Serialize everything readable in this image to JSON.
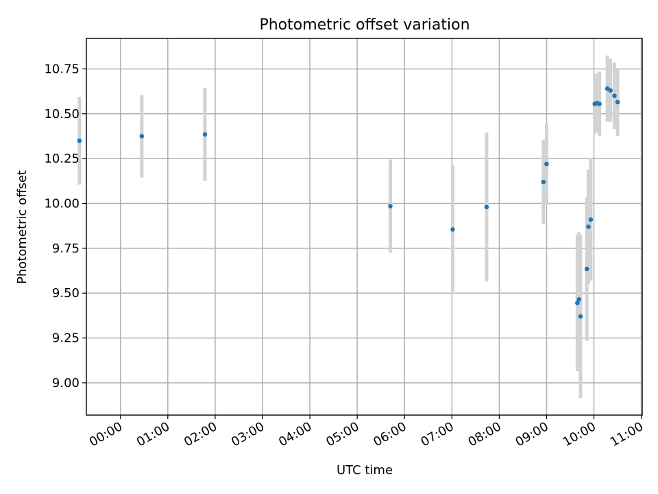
{
  "chart_data": {
    "type": "scatter",
    "title": "Photometric offset variation",
    "xlabel": "UTC time",
    "ylabel": "Photometric offset",
    "x_unit": "hours UTC",
    "xlim": [
      -0.72,
      11.02
    ],
    "ylim": [
      8.82,
      10.92
    ],
    "xticks": [
      0,
      1,
      2,
      3,
      4,
      5,
      6,
      7,
      8,
      9,
      10,
      11
    ],
    "xtick_labels": [
      "00:00",
      "01:00",
      "02:00",
      "03:00",
      "04:00",
      "05:00",
      "06:00",
      "07:00",
      "08:00",
      "09:00",
      "10:00",
      "11:00"
    ],
    "yticks": [
      9.0,
      9.25,
      9.5,
      9.75,
      10.0,
      10.25,
      10.5,
      10.75
    ],
    "ytick_labels": [
      "9.00",
      "9.25",
      "9.50",
      "9.75",
      "10.00",
      "10.25",
      "10.50",
      "10.75"
    ],
    "grid": true,
    "marker_color": "#1f77b4",
    "errorbar_color": "#d3d3d3",
    "points": [
      {
        "x": "23:08",
        "y": 10.35,
        "err": 0.245
      },
      {
        "x": "00:27",
        "y": 10.375,
        "err": 0.23
      },
      {
        "x": "01:47",
        "y": 10.385,
        "err": 0.26
      },
      {
        "x": "05:42",
        "y": 9.985,
        "err": 0.26
      },
      {
        "x": "07:01",
        "y": 9.855,
        "err": 0.36
      },
      {
        "x": "07:44",
        "y": 9.98,
        "err": 0.415
      },
      {
        "x": "08:56",
        "y": 10.12,
        "err": 0.235
      },
      {
        "x": "09:00",
        "y": 10.22,
        "err": 0.225
      },
      {
        "x": "09:39",
        "y": 9.445,
        "err": 0.38
      },
      {
        "x": "09:41",
        "y": 9.465,
        "err": 0.375
      },
      {
        "x": "09:43",
        "y": 9.37,
        "err": 0.455
      },
      {
        "x": "09:51",
        "y": 9.635,
        "err": 0.4
      },
      {
        "x": "09:53",
        "y": 9.87,
        "err": 0.32
      },
      {
        "x": "09:56",
        "y": 9.91,
        "err": 0.34
      },
      {
        "x": "10:01",
        "y": 10.555,
        "err": 0.165
      },
      {
        "x": "10:04",
        "y": 10.56,
        "err": 0.165
      },
      {
        "x": "10:07",
        "y": 10.555,
        "err": 0.18
      },
      {
        "x": "10:17",
        "y": 10.64,
        "err": 0.185
      },
      {
        "x": "10:21",
        "y": 10.63,
        "err": 0.175
      },
      {
        "x": "10:26",
        "y": 10.6,
        "err": 0.185
      },
      {
        "x": "10:30",
        "y": 10.565,
        "err": 0.19
      }
    ]
  }
}
